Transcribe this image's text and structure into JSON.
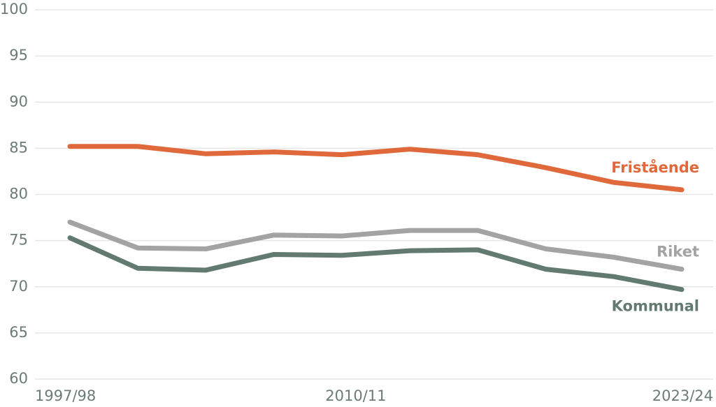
{
  "chart_data": {
    "type": "line",
    "categories": [
      "1997/98",
      null,
      null,
      null,
      "2010/11",
      null,
      null,
      null,
      null,
      "2023/24"
    ],
    "series": [
      {
        "name": "Fristående",
        "color": "#e0693c",
        "values": [
          85.2,
          85.2,
          84.4,
          84.6,
          84.3,
          84.9,
          84.3,
          82.9,
          81.3,
          80.5
        ]
      },
      {
        "name": "Riket",
        "color": "#a3a3a3",
        "values": [
          77.0,
          74.2,
          74.1,
          75.6,
          75.5,
          76.1,
          76.1,
          74.1,
          73.2,
          71.9
        ]
      },
      {
        "name": "Kommunal",
        "color": "#627a70",
        "values": [
          75.3,
          72.0,
          71.8,
          73.5,
          73.4,
          73.9,
          74.0,
          71.9,
          71.1,
          69.7
        ]
      }
    ],
    "ylim": [
      60,
      100
    ],
    "yticks": [
      60,
      65,
      70,
      75,
      80,
      85,
      90,
      95,
      100
    ],
    "grid": true
  }
}
